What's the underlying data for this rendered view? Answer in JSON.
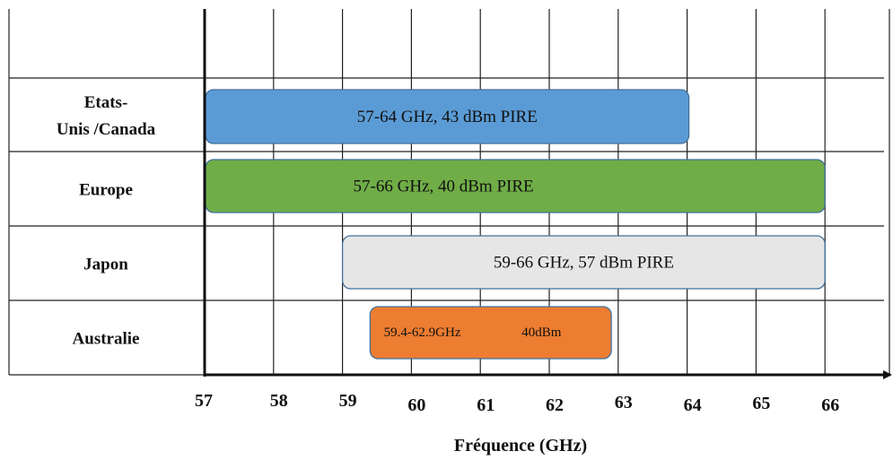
{
  "chart_data": {
    "type": "range-bar",
    "xlabel": "Fréquence (GHz)",
    "x_ticks": [
      57,
      58,
      59,
      60,
      61,
      62,
      63,
      64,
      65,
      66
    ],
    "xlim": [
      57,
      67
    ],
    "grid": true,
    "categories": [
      "Etats-Unis /Canada",
      "Europe",
      "Japon",
      "Australie"
    ],
    "category_label_lines": [
      [
        "Etats-",
        "Unis /Canada"
      ],
      [
        "Europe"
      ],
      [
        "Japon"
      ],
      [
        "Australie"
      ]
    ],
    "series": [
      {
        "category": "Etats-Unis /Canada",
        "start": 57,
        "end": 64,
        "labels": [
          "57-64 GHz, 43 dBm PIRE"
        ],
        "color": "#5b9bd5"
      },
      {
        "category": "Europe",
        "start": 57,
        "end": 66,
        "labels": [
          "57-66 GHz, 40 dBm PIRE"
        ],
        "color": "#70ad47"
      },
      {
        "category": "Japon",
        "start": 59,
        "end": 66,
        "labels": [
          "59-66 GHz, 57 dBm PIRE"
        ],
        "color": "#e7e6e6"
      },
      {
        "category": "Australie",
        "start": 59.4,
        "end": 62.9,
        "labels": [
          "59.4-62.9GHz",
          "40dBm"
        ],
        "color": "#ed7d31"
      }
    ]
  }
}
